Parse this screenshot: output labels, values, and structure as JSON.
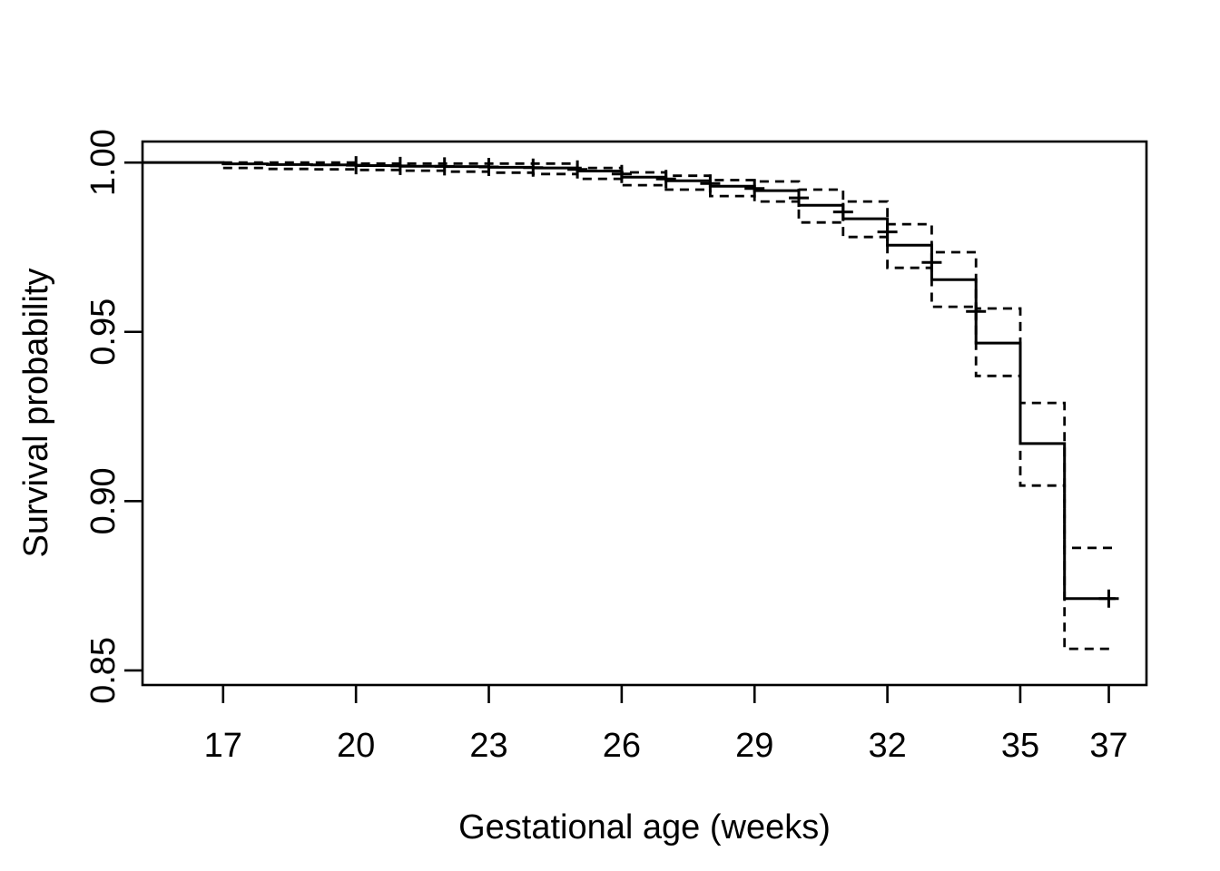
{
  "figure": {
    "background_color": "#ffffff",
    "line_color": "#000000"
  },
  "chart_data": {
    "type": "line",
    "subtype": "kaplan-meier-step-curve",
    "title": "",
    "xlabel": "Gestational age (weeks)",
    "ylabel": "Survival probability",
    "x_tick_labels": [
      "17",
      "20",
      "23",
      "26",
      "29",
      "32",
      "35",
      "37"
    ],
    "x_tick_values": [
      17,
      20,
      23,
      26,
      29,
      32,
      35,
      37
    ],
    "y_tick_labels": [
      "1.00",
      "0.95",
      "0.90",
      "0.85"
    ],
    "y_tick_values": [
      1.0,
      0.95,
      0.9,
      0.85
    ],
    "xlim": [
      15.18,
      37.85
    ],
    "ylim": [
      0.8457,
      1.0062
    ],
    "grid": false,
    "legend": false,
    "start_time": 15.18,
    "start_survival": 1.0,
    "end_time": 37.15,
    "series": [
      {
        "name": "survival-estimate",
        "style": "solid",
        "event_times": [
          17,
          18,
          19,
          20,
          21,
          22,
          23,
          24,
          25,
          26,
          27,
          28,
          29,
          30,
          31,
          32,
          33,
          34,
          35,
          36
        ],
        "values": [
          0.9996,
          0.9994,
          0.9993,
          0.9991,
          0.9989,
          0.9988,
          0.9986,
          0.9984,
          0.9975,
          0.9957,
          0.9946,
          0.993,
          0.9917,
          0.9874,
          0.9834,
          0.9756,
          0.9654,
          0.9467,
          0.917,
          0.8712
        ]
      },
      {
        "name": "ci-upper",
        "style": "dashed",
        "event_times": [
          17,
          18,
          19,
          20,
          21,
          22,
          23,
          24,
          25,
          26,
          27,
          28,
          29,
          30,
          31,
          32,
          33,
          34,
          35,
          36
        ],
        "values": [
          1.0,
          1.0,
          1.0,
          0.9997,
          0.9997,
          0.9997,
          0.9997,
          0.9997,
          0.9984,
          0.9971,
          0.9961,
          0.9948,
          0.9944,
          0.992,
          0.9885,
          0.9818,
          0.9735,
          0.9569,
          0.929,
          0.8862
        ]
      },
      {
        "name": "ci-lower",
        "style": "dashed",
        "event_times": [
          17,
          18,
          19,
          20,
          21,
          22,
          23,
          24,
          25,
          26,
          27,
          28,
          29,
          30,
          31,
          32,
          33,
          34,
          35,
          36
        ],
        "values": [
          0.9984,
          0.9981,
          0.998,
          0.9978,
          0.9976,
          0.9973,
          0.997,
          0.9966,
          0.9952,
          0.9933,
          0.992,
          0.9901,
          0.9885,
          0.9823,
          0.978,
          0.9689,
          0.9574,
          0.937,
          0.9046,
          0.8564
        ]
      }
    ],
    "censor_times": [
      20,
      21,
      22,
      23,
      24,
      25,
      26,
      27,
      28,
      29,
      30,
      31,
      32,
      33,
      34,
      37.0
    ],
    "censor_marker": "plus"
  }
}
